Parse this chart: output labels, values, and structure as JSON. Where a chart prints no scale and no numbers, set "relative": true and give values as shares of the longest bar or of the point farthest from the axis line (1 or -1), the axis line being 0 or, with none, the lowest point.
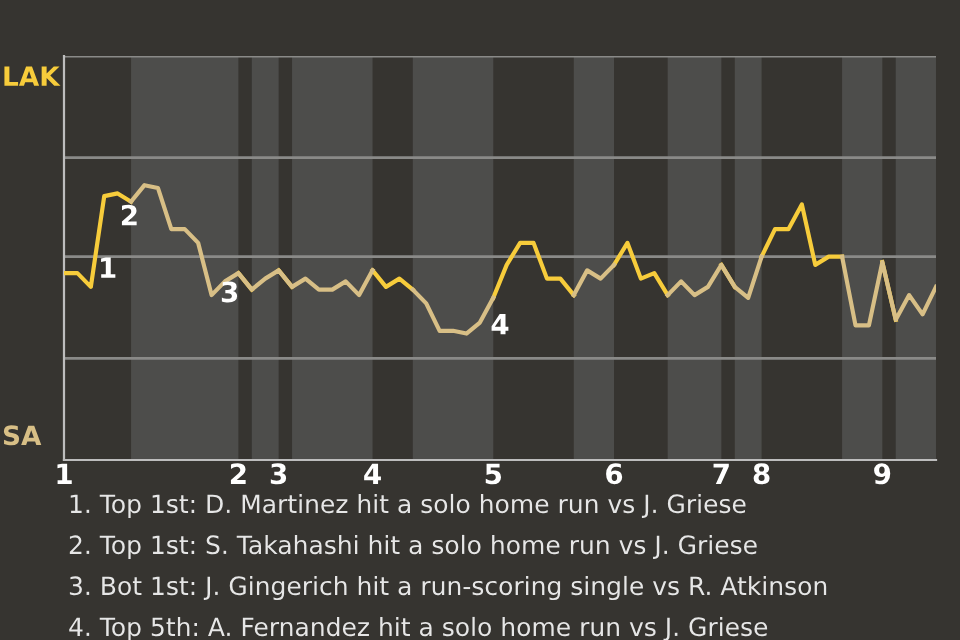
{
  "chart_data": {
    "type": "line",
    "relative": true,
    "categories": [
      "1",
      null,
      null,
      null,
      null,
      null,
      null,
      null,
      null,
      null,
      null,
      null,
      null,
      "2",
      null,
      null,
      "3",
      null,
      null,
      null,
      null,
      null,
      null,
      "4",
      null,
      null,
      null,
      null,
      null,
      null,
      null,
      null,
      "5",
      null,
      null,
      null,
      null,
      null,
      null,
      null,
      null,
      "6",
      null,
      null,
      null,
      null,
      null,
      null,
      null,
      "7",
      null,
      null,
      "8",
      null,
      null,
      null,
      null,
      null,
      null,
      null,
      null,
      "9",
      null,
      null,
      null,
      null
    ],
    "legend": "left",
    "ref_lines": [
      {
        "axis": "y",
        "value": 0.37,
        "color": "#8a8a88"
      },
      {
        "axis": "y",
        "value": 0.74,
        "color": "#8a8a88"
      },
      {
        "axis": "y",
        "value": 1.1,
        "color": "#8a8a88"
      },
      {
        "axis": "y",
        "value": 1.47,
        "color": "#8a8a88"
      }
    ],
    "marker": "none",
    "line_style": "solid",
    "series": [
      {
        "name": "LAK",
        "color": "#f7cc3b",
        "values": [
          0.68,
          0.68,
          0.63,
          0.96,
          0.97,
          0.94,
          null,
          null,
          null,
          null,
          null,
          null,
          null,
          0.68,
          0.62,
          null,
          0.69,
          0.63,
          null,
          null,
          null,
          null,
          null,
          0.69,
          0.63,
          0.66,
          0.62,
          null,
          null,
          null,
          null,
          null,
          0.59,
          0.71,
          0.79,
          0.79,
          0.66,
          0.66,
          0.6,
          null,
          null,
          0.71,
          0.79,
          0.66,
          0.68,
          0.6,
          null,
          null,
          null,
          0.71,
          0.63,
          null,
          0.74,
          0.84,
          0.84,
          0.93,
          0.71,
          0.74,
          0.74,
          null,
          null,
          0.72,
          0.51,
          null,
          null,
          null
        ]
      },
      {
        "name": "SA",
        "color": "#d8bf86",
        "values": [
          null,
          null,
          null,
          null,
          null,
          0.94,
          1,
          0.99,
          0.84,
          0.84,
          0.79,
          0.6,
          0.65,
          0.68,
          0.62,
          0.66,
          0.69,
          0.63,
          0.66,
          0.62,
          0.62,
          0.65,
          0.6,
          0.69,
          null,
          null,
          0.62,
          0.57,
          0.47,
          0.47,
          0.46,
          0.5,
          0.59,
          null,
          null,
          null,
          null,
          null,
          0.6,
          0.69,
          0.66,
          0.71,
          null,
          null,
          null,
          0.6,
          0.65,
          0.6,
          0.63,
          0.71,
          0.63,
          0.59,
          0.74,
          null,
          null,
          null,
          null,
          null,
          0.74,
          0.49,
          0.49,
          0.72,
          0.51,
          0.6,
          0.53,
          0.63
        ]
      }
    ],
    "annotations": [
      "1",
      "2",
      "3",
      "4",
      "1. Top 1st: D. Martinez hit a solo home run vs J. Griese",
      "2. Top 1st: S. Takahashi hit a solo home run vs J. Griese",
      "3. Bot 1st: J. Gingerich hit a run-scoring single vs R. Atkinson",
      "4. Top 5th: A. Fernandez hit a solo home run vs J. Griese"
    ]
  }
}
